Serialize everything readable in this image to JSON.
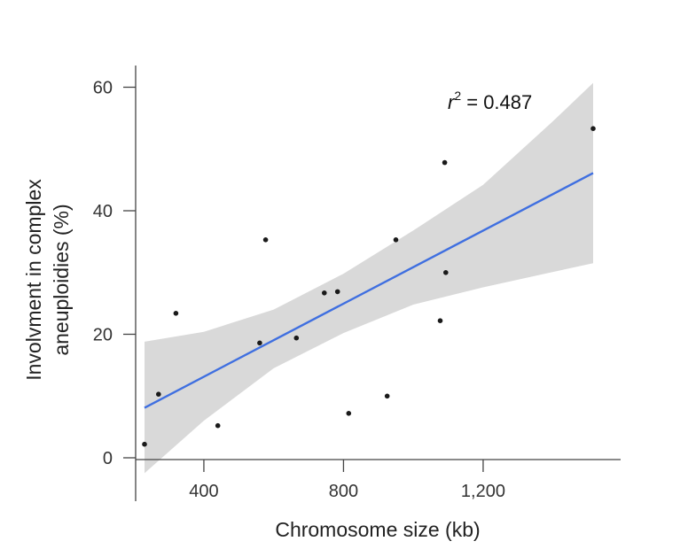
{
  "chart_data": {
    "type": "scatter",
    "title": "",
    "xlabel": "Chromosome size (kb)",
    "ylabel_lines": [
      "Involvment in complex",
      "aneuploidies (%)"
    ],
    "xlim": [
      230,
      1530
    ],
    "ylim": [
      0,
      60
    ],
    "x_ticks": [
      400,
      800,
      1200
    ],
    "x_tick_labels": [
      "400",
      "800",
      "1,200"
    ],
    "y_ticks": [
      0,
      20,
      40,
      60
    ],
    "y_tick_labels": [
      "0",
      "20",
      "40",
      "60"
    ],
    "grid": false,
    "legend": "none",
    "annotation": {
      "prefix": "r",
      "superscript": "2",
      "suffix": " = 0.487"
    },
    "points": [
      {
        "x": 230,
        "y": 2.2
      },
      {
        "x": 270,
        "y": 10.3
      },
      {
        "x": 320,
        "y": 23.4
      },
      {
        "x": 440,
        "y": 5.2
      },
      {
        "x": 560,
        "y": 18.6
      },
      {
        "x": 577,
        "y": 35.3
      },
      {
        "x": 665,
        "y": 19.4
      },
      {
        "x": 745,
        "y": 26.7
      },
      {
        "x": 783,
        "y": 26.9
      },
      {
        "x": 815,
        "y": 7.2
      },
      {
        "x": 925,
        "y": 10.0
      },
      {
        "x": 950,
        "y": 35.3
      },
      {
        "x": 1077,
        "y": 22.2
      },
      {
        "x": 1090,
        "y": 47.8
      },
      {
        "x": 1093,
        "y": 30.0
      },
      {
        "x": 1515,
        "y": 53.3
      }
    ],
    "fit_line": {
      "x": [
        230,
        1515
      ],
      "y": [
        8.1,
        46.1
      ]
    },
    "confidence_band": {
      "x": [
        230,
        400,
        600,
        800,
        1000,
        1200,
        1400,
        1515
      ],
      "lower": [
        -2.5,
        6.0,
        14.5,
        20.2,
        24.8,
        27.6,
        30.1,
        31.5
      ],
      "upper": [
        18.8,
        20.4,
        24.0,
        29.8,
        36.8,
        44.2,
        54.5,
        60.7
      ]
    },
    "colors": {
      "fit_line": "#3f6fe0",
      "band": "#d9d9d9",
      "points": "#1a1a1a",
      "axis": "#444444"
    }
  }
}
